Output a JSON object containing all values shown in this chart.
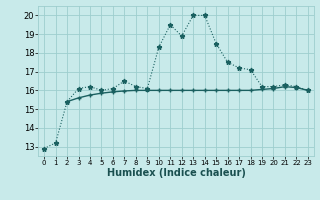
{
  "title": "",
  "xlabel": "Humidex (Indice chaleur)",
  "ylabel": "",
  "bg_color": "#c8eaea",
  "grid_color": "#9ecece",
  "line_color": "#1a6060",
  "xlim": [
    -0.5,
    23.5
  ],
  "ylim": [
    12.5,
    20.5
  ],
  "yticks": [
    13,
    14,
    15,
    16,
    17,
    18,
    19,
    20
  ],
  "xticks": [
    0,
    1,
    2,
    3,
    4,
    5,
    6,
    7,
    8,
    9,
    10,
    11,
    12,
    13,
    14,
    15,
    16,
    17,
    18,
    19,
    20,
    21,
    22,
    23
  ],
  "series1_x": [
    0,
    1,
    2,
    3,
    4,
    5,
    6,
    7,
    8,
    9,
    10,
    11,
    12,
    13,
    14,
    15,
    16,
    17,
    18,
    19,
    20,
    21,
    22,
    23
  ],
  "series1_y": [
    12.9,
    13.2,
    15.4,
    16.1,
    16.2,
    16.0,
    16.1,
    16.5,
    16.2,
    16.1,
    18.3,
    19.5,
    18.9,
    20.0,
    20.0,
    18.5,
    17.5,
    17.2,
    17.1,
    16.2,
    16.2,
    16.3,
    16.2,
    16.0
  ],
  "series2_x": [
    2,
    3,
    4,
    5,
    6,
    7,
    8,
    9,
    10,
    11,
    12,
    13,
    14,
    15,
    16,
    17,
    18,
    19,
    20,
    21,
    22,
    23
  ],
  "series2_y": [
    15.4,
    15.6,
    15.75,
    15.85,
    15.92,
    15.97,
    16.0,
    16.0,
    16.0,
    16.0,
    16.0,
    16.0,
    16.0,
    16.0,
    16.0,
    16.0,
    16.0,
    16.05,
    16.1,
    16.2,
    16.15,
    16.0
  ]
}
